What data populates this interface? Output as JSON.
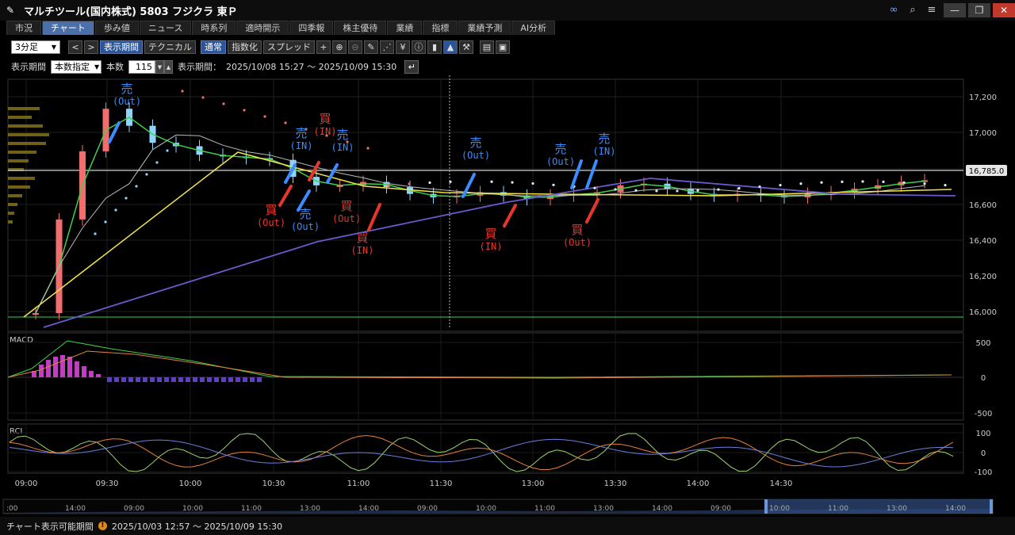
{
  "window": {
    "title": "マルチツール(国内株式) 5803 フジクラ 東Ｐ",
    "icons": [
      "link-icon",
      "search-icon",
      "menu-icon"
    ],
    "buttons": {
      "minimize": "—",
      "restore": "❐",
      "close": "✕"
    }
  },
  "tabs": [
    {
      "label": "市況",
      "active": false
    },
    {
      "label": "チャート",
      "active": true
    },
    {
      "label": "歩み値",
      "active": false
    },
    {
      "label": "ニュース",
      "active": false
    },
    {
      "label": "時系列",
      "active": false
    },
    {
      "label": "適時開示",
      "active": false
    },
    {
      "label": "四季報",
      "active": false
    },
    {
      "label": "株主優待",
      "active": false
    },
    {
      "label": "業績",
      "active": false
    },
    {
      "label": "指標",
      "active": false
    },
    {
      "label": "業績予測",
      "active": false
    },
    {
      "label": "AI分析",
      "active": false
    }
  ],
  "toolbar": {
    "interval": "3分足",
    "prev": "<",
    "next": ">",
    "period_btn": "表示期間",
    "technical_btn": "テクニカル",
    "normal_btn": "通常",
    "index_btn": "指数化",
    "spread_btn": "スプレッド"
  },
  "period": {
    "label": "表示期間",
    "mode": "本数指定",
    "count_label": "本数",
    "count": "115",
    "range_label": "表示期間：",
    "range": "2025/10/08 15:27 ～ 2025/10/09 15:30"
  },
  "price_axis": [
    "17,200",
    "17,000",
    "16,800",
    "16,600",
    "16,400",
    "16,200",
    "16,000"
  ],
  "current_price": "16,785.0",
  "macd": {
    "label": "MACD",
    "ticks": [
      "500",
      "0",
      "-500"
    ]
  },
  "rci": {
    "label": "RCI",
    "ticks": [
      "100",
      "0",
      "-100"
    ]
  },
  "time_axis": [
    "09:00",
    "09:30",
    "10:00",
    "10:30",
    "11:00",
    "11:30",
    "13:00",
    "13:30",
    "14:00",
    "14:30"
  ],
  "nav_axis": [
    ":00",
    "14:00",
    "09:00",
    "10:00",
    "11:00",
    "13:00",
    "14:00",
    "09:00",
    "10:00",
    "11:00",
    "13:00",
    "14:00",
    "09:00",
    "10:00",
    "11:00",
    "13:00",
    "14:00"
  ],
  "annotations": {
    "sell": "売",
    "buy": "買",
    "out": "(Out)",
    "in": "(IN)",
    "extra": "(IN)"
  },
  "status": {
    "label": "チャート表示可能期間",
    "range": "2025/10/03 12:57 ～ 2025/10/09 15:30"
  },
  "colors": {
    "up": "#f26e6e",
    "down": "#8fd3ff",
    "ma_green": "#3ecf4b",
    "ma_yellow": "#f3e34a",
    "ma_blue": "#6a5acd",
    "sell_arrow": "#2f86ff",
    "buy_arrow": "#e8362c",
    "accent_tab": "#4b6fa8"
  },
  "chart_data": {
    "type": "candlestick",
    "series": [
      {
        "name": "price_close",
        "values": [
          15950,
          16500,
          16900,
          17150,
          17050,
          16950,
          16930,
          16880,
          16870,
          16860,
          16850,
          16750,
          16700,
          16700,
          16720,
          16690,
          16650,
          16630,
          16640,
          16660,
          16640,
          16620,
          16640,
          16650,
          16660,
          16700,
          16710,
          16680,
          16650,
          16640,
          16650,
          16640,
          16630,
          16650,
          16660,
          16680,
          16700,
          16720,
          16730
        ]
      }
    ],
    "ylim": [
      15950,
      17300
    ]
  }
}
